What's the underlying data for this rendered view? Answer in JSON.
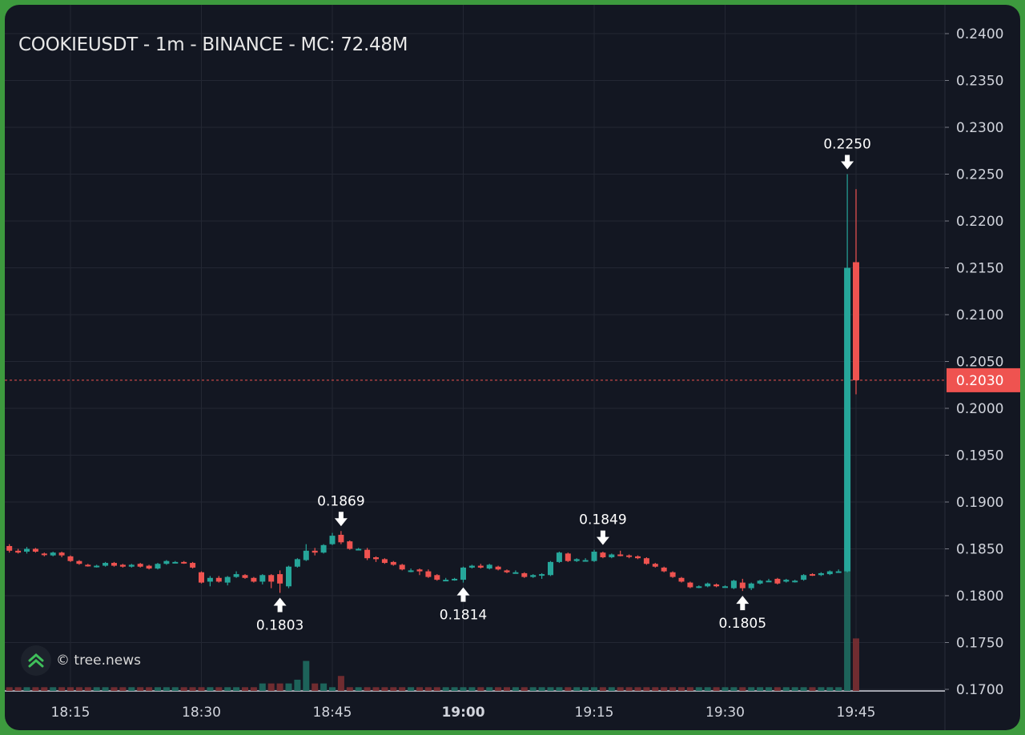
{
  "chart": {
    "title": "COOKIEUSDT - 1m - BINANCE - MC: 72.48M",
    "watermark": "© tree.news",
    "current_price_label": "0.2030"
  },
  "colors": {
    "background": "#131722",
    "up": "#26a69a",
    "down": "#ef5350",
    "grid": "#232733",
    "frame": "#3d9a3e"
  },
  "chart_data": {
    "type": "candlestick",
    "symbol": "COOKIEUSDT",
    "interval": "1m",
    "exchange": "BINANCE",
    "market_cap": "72.48M",
    "y_ticks": [
      "0.2400",
      "0.2350",
      "0.2300",
      "0.2250",
      "0.2200",
      "0.2150",
      "0.2100",
      "0.2050",
      "0.2000",
      "0.1950",
      "0.1900",
      "0.1850",
      "0.1800",
      "0.1750",
      "0.1700"
    ],
    "ylim": [
      0.17,
      0.24
    ],
    "x_ticks": [
      {
        "label": "18:15",
        "minute": 15,
        "bold": false
      },
      {
        "label": "18:30",
        "minute": 30,
        "bold": false
      },
      {
        "label": "18:45",
        "minute": 45,
        "bold": false
      },
      {
        "label": "19:00",
        "minute": 60,
        "bold": true
      },
      {
        "label": "19:15",
        "minute": 75,
        "bold": false
      },
      {
        "label": "19:30",
        "minute": 90,
        "bold": false
      },
      {
        "label": "19:45",
        "minute": 105,
        "bold": false
      }
    ],
    "current_price": 0.203,
    "annotations": [
      {
        "label": "0.2250",
        "minute": 104,
        "price": 0.225,
        "type": "high"
      },
      {
        "label": "0.1869",
        "minute": 46,
        "price": 0.1869,
        "type": "high"
      },
      {
        "label": "0.1849",
        "minute": 76,
        "price": 0.1849,
        "type": "high"
      },
      {
        "label": "0.1803",
        "minute": 39,
        "price": 0.1803,
        "type": "low"
      },
      {
        "label": "0.1814",
        "minute": 60,
        "price": 0.1814,
        "type": "low"
      },
      {
        "label": "0.1805",
        "minute": 92,
        "price": 0.1805,
        "type": "low"
      }
    ],
    "candles": [
      [
        8,
        0.1853,
        0.1848,
        0.1855,
        0.1846,
        1
      ],
      [
        9,
        0.1848,
        0.1846,
        0.185,
        0.1845,
        1
      ],
      [
        10,
        0.1847,
        0.185,
        0.1852,
        0.1845,
        1
      ],
      [
        11,
        0.185,
        0.1847,
        0.1851,
        0.1846,
        1
      ],
      [
        12,
        0.1845,
        0.1844,
        0.1846,
        0.1842,
        1
      ],
      [
        13,
        0.1843,
        0.1846,
        0.1847,
        0.1842,
        1
      ],
      [
        14,
        0.1846,
        0.1843,
        0.1847,
        0.1841,
        1
      ],
      [
        15,
        0.1842,
        0.1837,
        0.1843,
        0.1836,
        1
      ],
      [
        16,
        0.1837,
        0.1834,
        0.1838,
        0.1833,
        1
      ],
      [
        17,
        0.1833,
        0.1832,
        0.1834,
        0.1831,
        1
      ],
      [
        18,
        0.1831,
        0.1832,
        0.1833,
        0.183,
        1
      ],
      [
        19,
        0.1832,
        0.1835,
        0.1836,
        0.1831,
        1
      ],
      [
        20,
        0.1835,
        0.1832,
        0.1836,
        0.1831,
        1
      ],
      [
        21,
        0.1833,
        0.1831,
        0.1834,
        0.183,
        1
      ],
      [
        22,
        0.1831,
        0.1833,
        0.1834,
        0.183,
        1
      ],
      [
        23,
        0.1834,
        0.1831,
        0.1835,
        0.183,
        1
      ],
      [
        24,
        0.1832,
        0.1829,
        0.1833,
        0.1828,
        1
      ],
      [
        25,
        0.1829,
        0.1834,
        0.1835,
        0.1828,
        1
      ],
      [
        26,
        0.1834,
        0.1837,
        0.1838,
        0.1833,
        1
      ],
      [
        27,
        0.1836,
        0.1836,
        0.1837,
        0.1835,
        1
      ],
      [
        28,
        0.1836,
        0.1835,
        0.1837,
        0.1834,
        1
      ],
      [
        29,
        0.1835,
        0.183,
        0.1836,
        0.1829,
        1
      ],
      [
        30,
        0.1825,
        0.1814,
        0.1826,
        0.1813,
        1
      ],
      [
        31,
        0.1815,
        0.1819,
        0.1821,
        0.181,
        1
      ],
      [
        32,
        0.1819,
        0.1815,
        0.1821,
        0.1814,
        1
      ],
      [
        33,
        0.1814,
        0.182,
        0.1821,
        0.1811,
        1
      ],
      [
        34,
        0.182,
        0.1823,
        0.1826,
        0.1819,
        1
      ],
      [
        35,
        0.1822,
        0.1819,
        0.1823,
        0.1818,
        1
      ],
      [
        36,
        0.1819,
        0.1815,
        0.182,
        0.1814,
        1
      ],
      [
        37,
        0.1815,
        0.1822,
        0.1823,
        0.1812,
        2
      ],
      [
        38,
        0.1822,
        0.1815,
        0.1823,
        0.1808,
        2
      ],
      [
        39,
        0.1823,
        0.1813,
        0.1827,
        0.1803,
        2
      ],
      [
        40,
        0.181,
        0.1831,
        0.1832,
        0.1808,
        2
      ],
      [
        41,
        0.1831,
        0.1839,
        0.184,
        0.183,
        3
      ],
      [
        42,
        0.1838,
        0.1848,
        0.1855,
        0.1837,
        8
      ],
      [
        43,
        0.1848,
        0.1846,
        0.1851,
        0.1843,
        2
      ],
      [
        44,
        0.1846,
        0.1854,
        0.1855,
        0.1845,
        2
      ],
      [
        45,
        0.1855,
        0.1864,
        0.1867,
        0.1854,
        1
      ],
      [
        46,
        0.1865,
        0.1857,
        0.1869,
        0.1855,
        4
      ],
      [
        47,
        0.1858,
        0.185,
        0.1859,
        0.1849,
        1
      ],
      [
        48,
        0.185,
        0.185,
        0.1851,
        0.1849,
        1
      ],
      [
        49,
        0.1849,
        0.184,
        0.1851,
        0.1838,
        1
      ],
      [
        50,
        0.1841,
        0.1839,
        0.1842,
        0.1836,
        1
      ],
      [
        51,
        0.1839,
        0.1835,
        0.184,
        0.1834,
        1
      ],
      [
        52,
        0.1836,
        0.1833,
        0.1837,
        0.1832,
        1
      ],
      [
        53,
        0.1833,
        0.1828,
        0.1834,
        0.1827,
        1
      ],
      [
        54,
        0.1826,
        0.1827,
        0.1829,
        0.1825,
        1
      ],
      [
        55,
        0.1828,
        0.1826,
        0.1829,
        0.1822,
        1
      ],
      [
        56,
        0.1826,
        0.182,
        0.1828,
        0.1819,
        1
      ],
      [
        57,
        0.1822,
        0.1817,
        0.1823,
        0.1816,
        1
      ],
      [
        58,
        0.1817,
        0.1817,
        0.1819,
        0.1816,
        1
      ],
      [
        59,
        0.1818,
        0.1818,
        0.1819,
        0.1816,
        1
      ],
      [
        60,
        0.1817,
        0.183,
        0.1831,
        0.1814,
        1
      ],
      [
        61,
        0.183,
        0.1832,
        0.1833,
        0.1829,
        1
      ],
      [
        62,
        0.1832,
        0.183,
        0.1834,
        0.1829,
        1
      ],
      [
        63,
        0.1829,
        0.1833,
        0.1834,
        0.1828,
        1
      ],
      [
        64,
        0.1831,
        0.1828,
        0.1832,
        0.1827,
        1
      ],
      [
        65,
        0.1827,
        0.1825,
        0.1828,
        0.1824,
        1
      ],
      [
        66,
        0.1825,
        0.1825,
        0.1827,
        0.1824,
        1
      ],
      [
        67,
        0.1824,
        0.182,
        0.1825,
        0.1819,
        1
      ],
      [
        68,
        0.182,
        0.1822,
        0.1823,
        0.1819,
        1
      ],
      [
        69,
        0.1822,
        0.1823,
        0.1824,
        0.1818,
        1
      ],
      [
        70,
        0.1822,
        0.1836,
        0.1837,
        0.1821,
        1
      ],
      [
        71,
        0.1836,
        0.1846,
        0.1847,
        0.1835,
        1
      ],
      [
        72,
        0.1845,
        0.1837,
        0.1846,
        0.1836,
        1
      ],
      [
        73,
        0.1837,
        0.1839,
        0.184,
        0.1836,
        1
      ],
      [
        74,
        0.1838,
        0.1838,
        0.184,
        0.1837,
        1
      ],
      [
        75,
        0.1837,
        0.1847,
        0.1849,
        0.1836,
        1
      ],
      [
        76,
        0.1846,
        0.1841,
        0.1847,
        0.184,
        1
      ],
      [
        77,
        0.1841,
        0.1844,
        0.1845,
        0.184,
        1
      ],
      [
        78,
        0.1844,
        0.1843,
        0.1848,
        0.1842,
        1
      ],
      [
        79,
        0.1843,
        0.1842,
        0.1844,
        0.184,
        1
      ],
      [
        80,
        0.1842,
        0.184,
        0.1843,
        0.1839,
        1
      ],
      [
        81,
        0.184,
        0.1834,
        0.1841,
        0.1833,
        1
      ],
      [
        82,
        0.1834,
        0.1831,
        0.1835,
        0.183,
        1
      ],
      [
        83,
        0.183,
        0.1826,
        0.1831,
        0.1825,
        1
      ],
      [
        84,
        0.1825,
        0.182,
        0.1826,
        0.1819,
        1
      ],
      [
        85,
        0.1819,
        0.1815,
        0.182,
        0.1814,
        1
      ],
      [
        86,
        0.1814,
        0.1809,
        0.1815,
        0.1808,
        1
      ],
      [
        87,
        0.1809,
        0.181,
        0.1811,
        0.1808,
        1
      ],
      [
        88,
        0.181,
        0.1813,
        0.1814,
        0.1809,
        1
      ],
      [
        89,
        0.1812,
        0.181,
        0.1813,
        0.1809,
        1
      ],
      [
        90,
        0.181,
        0.181,
        0.1811,
        0.1809,
        1
      ],
      [
        91,
        0.1808,
        0.1816,
        0.1817,
        0.1807,
        1
      ],
      [
        92,
        0.1814,
        0.1808,
        0.1818,
        0.1805,
        1
      ],
      [
        93,
        0.1808,
        0.1813,
        0.1814,
        0.1806,
        1
      ],
      [
        94,
        0.1813,
        0.1816,
        0.1817,
        0.1812,
        1
      ],
      [
        95,
        0.1816,
        0.1816,
        0.1818,
        0.1815,
        1
      ],
      [
        96,
        0.1818,
        0.1813,
        0.1819,
        0.1812,
        1
      ],
      [
        97,
        0.1815,
        0.1817,
        0.1818,
        0.1814,
        1
      ],
      [
        98,
        0.1815,
        0.1816,
        0.1817,
        0.1814,
        1
      ],
      [
        99,
        0.1817,
        0.1822,
        0.1823,
        0.1816,
        1
      ],
      [
        100,
        0.1823,
        0.1822,
        0.1824,
        0.1821,
        1
      ],
      [
        101,
        0.1822,
        0.1824,
        0.1825,
        0.1821,
        1
      ],
      [
        102,
        0.1823,
        0.1826,
        0.1827,
        0.1822,
        1
      ],
      [
        103,
        0.1826,
        0.1826,
        0.1828,
        0.1825,
        1
      ],
      [
        104,
        0.1826,
        0.215,
        0.225,
        0.1825,
        32
      ],
      [
        105,
        0.2156,
        0.203,
        0.2234,
        0.2015,
        14
      ]
    ]
  }
}
